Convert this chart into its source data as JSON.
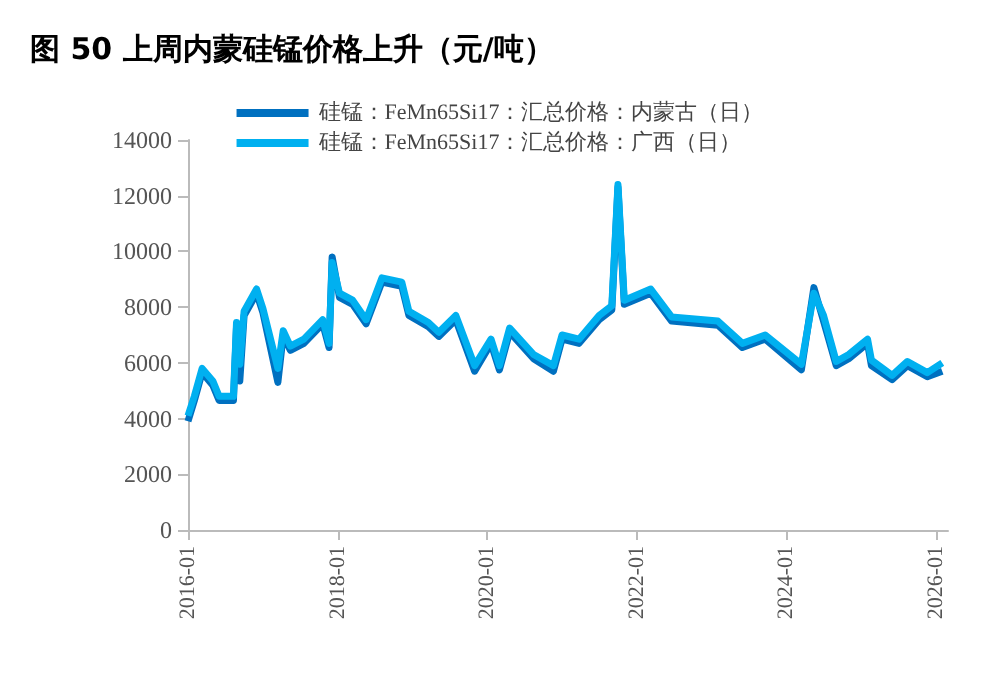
{
  "chart_data": {
    "type": "line",
    "title": "图 50 上周内蒙硅锰价格上升（元/吨）",
    "x": [
      "2016-01-01",
      "2016-02-01",
      "2016-03-10",
      "2016-05-01",
      "2016-06-01",
      "2016-08-10",
      "2016-08-25",
      "2016-09-10",
      "2016-10-01",
      "2016-12-01",
      "2017-01-01",
      "2017-03-15",
      "2017-04-10",
      "2017-05-15",
      "2017-07-20",
      "2017-10-20",
      "2017-11-20",
      "2017-12-05",
      "2018-01-10",
      "2018-03-15",
      "2018-05-20",
      "2018-08-05",
      "2018-11-10",
      "2018-12-15",
      "2019-03-20",
      "2019-05-10",
      "2019-08-01",
      "2019-11-01",
      "2020-01-20",
      "2020-03-01",
      "2020-04-20",
      "2020-08-15",
      "2020-11-20",
      "2021-01-01",
      "2021-03-25",
      "2021-07-01",
      "2021-09-01",
      "2021-10-01",
      "2021-11-01",
      "2022-03-10",
      "2022-06-20",
      "2023-02-01",
      "2023-06-01",
      "2023-09-20",
      "2024-03-15",
      "2024-05-15",
      "2024-07-01",
      "2024-09-01",
      "2024-11-01",
      "2025-02-01",
      "2025-02-20",
      "2025-06-01",
      "2025-08-15",
      "2025-11-20",
      "2026-02-01"
    ],
    "series": [
      {
        "name": "硅锰：FeMn65Si17：汇总价格：内蒙古（日）",
        "color": "#0070c0",
        "values": [
          3900,
          4650,
          5650,
          5200,
          4650,
          4650,
          7300,
          5350,
          7700,
          8500,
          7800,
          5300,
          7000,
          6450,
          6700,
          7400,
          6550,
          9800,
          8350,
          8100,
          7400,
          8900,
          8750,
          7700,
          7300,
          6950,
          7550,
          5700,
          6700,
          5750,
          7100,
          6150,
          5700,
          6850,
          6700,
          7550,
          7900,
          12300,
          8100,
          8500,
          7500,
          7350,
          6550,
          6850,
          5750,
          8700,
          7500,
          5900,
          6150,
          6700,
          5900,
          5400,
          5900,
          5500,
          5700
        ]
      },
      {
        "name": "硅锰：FeMn65Si17：汇总价格：广西（日）",
        "color": "#00b0f0",
        "values": [
          4100,
          4800,
          5800,
          5350,
          4800,
          4800,
          7450,
          5950,
          7850,
          8650,
          7950,
          5800,
          7150,
          6600,
          6850,
          7550,
          6700,
          9600,
          8500,
          8250,
          7550,
          9050,
          8900,
          7850,
          7450,
          7100,
          7700,
          5900,
          6850,
          5900,
          7250,
          6300,
          5900,
          7000,
          6850,
          7700,
          8050,
          12400,
          8250,
          8650,
          7650,
          7500,
          6700,
          7000,
          5950,
          8500,
          7700,
          6050,
          6300,
          6850,
          6100,
          5550,
          6050,
          5650,
          6000
        ]
      }
    ],
    "xlim": [
      "2016-01-01",
      "2026-03-01"
    ],
    "xticks": [
      {
        "value": "2016-01-01",
        "label": "2016-01"
      },
      {
        "value": "2018-01-01",
        "label": "2018-01"
      },
      {
        "value": "2020-01-01",
        "label": "2020-01"
      },
      {
        "value": "2022-01-01",
        "label": "2022-01"
      },
      {
        "value": "2024-01-01",
        "label": "2024-01"
      },
      {
        "value": "2026-01-01",
        "label": "2026-01"
      }
    ],
    "ylim": [
      0,
      14000
    ],
    "yticks": [
      0,
      2000,
      4000,
      6000,
      8000,
      10000,
      12000,
      14000
    ],
    "grid": false,
    "legend": "top",
    "marker": "none",
    "line_style": "solid"
  }
}
